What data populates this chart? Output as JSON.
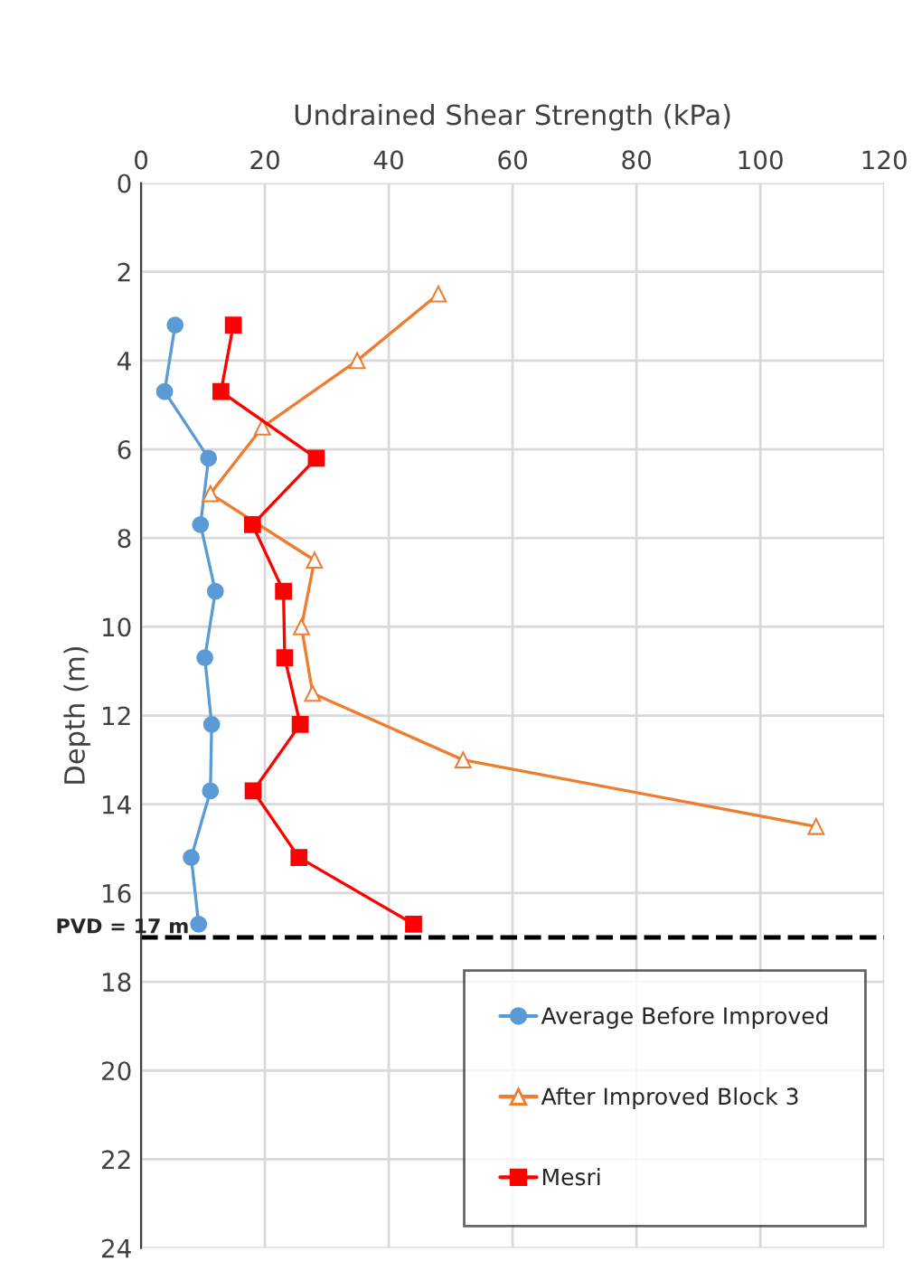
{
  "chart_data": {
    "type": "line",
    "xlabel": "Undrained Shear Strength (kPa)",
    "ylabel": "Depth (m)",
    "xlim": [
      0,
      120
    ],
    "xticks": [
      0,
      20,
      40,
      60,
      80,
      100,
      120
    ],
    "ylim": [
      24,
      0
    ],
    "yticks": [
      0,
      2,
      4,
      6,
      8,
      10,
      12,
      14,
      16,
      18,
      20,
      22,
      24
    ],
    "grid": true,
    "legend": "bottom right",
    "line_style": "solid",
    "series": [
      {
        "name": "Average Before Improved",
        "color": "#5b9bd5",
        "marker": "circle",
        "x": [
          5.5,
          3.8,
          10.9,
          9.6,
          12.0,
          10.3,
          11.4,
          11.2,
          8.1,
          9.3
        ],
        "values": [
          3.2,
          4.7,
          6.2,
          7.7,
          9.2,
          10.7,
          12.2,
          13.7,
          15.2,
          16.7
        ]
      },
      {
        "name": "After Improved Block 3",
        "color": "#ed7d31",
        "marker": "triangle",
        "x": [
          48.0,
          34.9,
          19.6,
          11.2,
          28.0,
          25.9,
          27.7,
          52.0,
          109.0
        ],
        "values": [
          2.5,
          4.0,
          5.5,
          7.0,
          8.5,
          10.0,
          11.5,
          13.0,
          14.5
        ]
      },
      {
        "name": "Mesri",
        "color": "#ff0000",
        "marker": "square",
        "x": [
          14.9,
          12.9,
          28.3,
          18.0,
          23.0,
          23.2,
          25.7,
          18.1,
          25.5,
          44.0
        ],
        "values": [
          3.2,
          4.7,
          6.2,
          7.7,
          9.2,
          10.7,
          12.2,
          13.7,
          15.2,
          16.7
        ]
      }
    ],
    "ref_lines": [
      {
        "axis": "y",
        "value": 17,
        "label": "PVD = 17 m",
        "color": "#000000",
        "line_style": "dashed"
      }
    ]
  }
}
